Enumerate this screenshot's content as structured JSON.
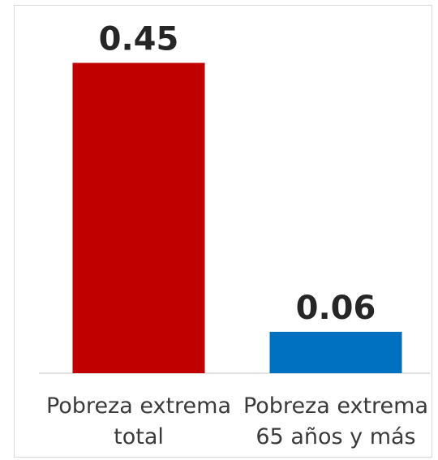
{
  "chart_data": {
    "type": "bar",
    "categories": [
      [
        "Pobreza extrema",
        "total"
      ],
      [
        "Pobreza extrema",
        "65 años y más"
      ]
    ],
    "values": [
      0.45,
      0.06
    ],
    "value_labels": [
      "0.45",
      "0.06"
    ],
    "colors": [
      "#c00000",
      "#0070c0"
    ],
    "title": "",
    "xlabel": "",
    "ylabel": "",
    "ylim": [
      0,
      0.5
    ],
    "grid": false,
    "legend": "none"
  }
}
